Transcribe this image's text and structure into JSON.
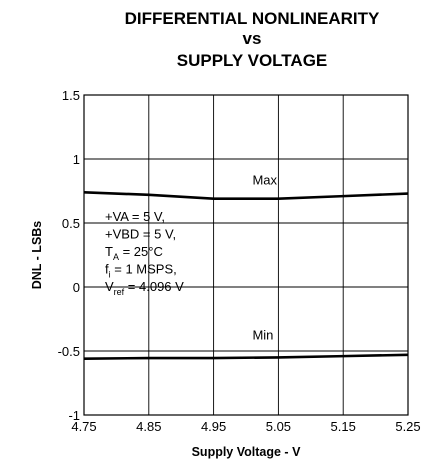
{
  "chart_data": {
    "type": "line",
    "title_lines": [
      "DIFFERENTIAL NONLINEARITY",
      "vs",
      "SUPPLY VOLTAGE"
    ],
    "xlabel": "Supply Voltage - V",
    "ylabel": "DNL - LSBs",
    "xlim": [
      4.75,
      5.25
    ],
    "ylim": [
      -1,
      1.5
    ],
    "x_ticks": [
      "4.75",
      "4.85",
      "4.95",
      "5.05",
      "5.15",
      "5.25"
    ],
    "y_ticks": [
      "1.5",
      "1",
      "0.5",
      "0",
      "-0.5",
      "-1"
    ],
    "grid": true,
    "series": [
      {
        "name": "Max",
        "x": [
          4.75,
          4.85,
          4.95,
          5.05,
          5.15,
          5.25
        ],
        "values": [
          0.74,
          0.72,
          0.69,
          0.69,
          0.71,
          0.73
        ]
      },
      {
        "name": "Min",
        "x": [
          4.75,
          4.85,
          4.95,
          5.05,
          5.15,
          5.25
        ],
        "values": [
          -0.56,
          -0.555,
          -0.555,
          -0.55,
          -0.54,
          -0.53
        ]
      }
    ],
    "annotations": {
      "conditions": [
        {
          "text": "+VA = 5 V,"
        },
        {
          "text": "+VBD = 5 V,"
        },
        {
          "text": "T",
          "sub": "A",
          "rest": " = 25°C"
        },
        {
          "text": "f",
          "sub": "i",
          "rest": " = 1 MSPS,"
        },
        {
          "text": "V",
          "sub": "ref",
          "rest": " = 4.096 V"
        }
      ]
    }
  }
}
